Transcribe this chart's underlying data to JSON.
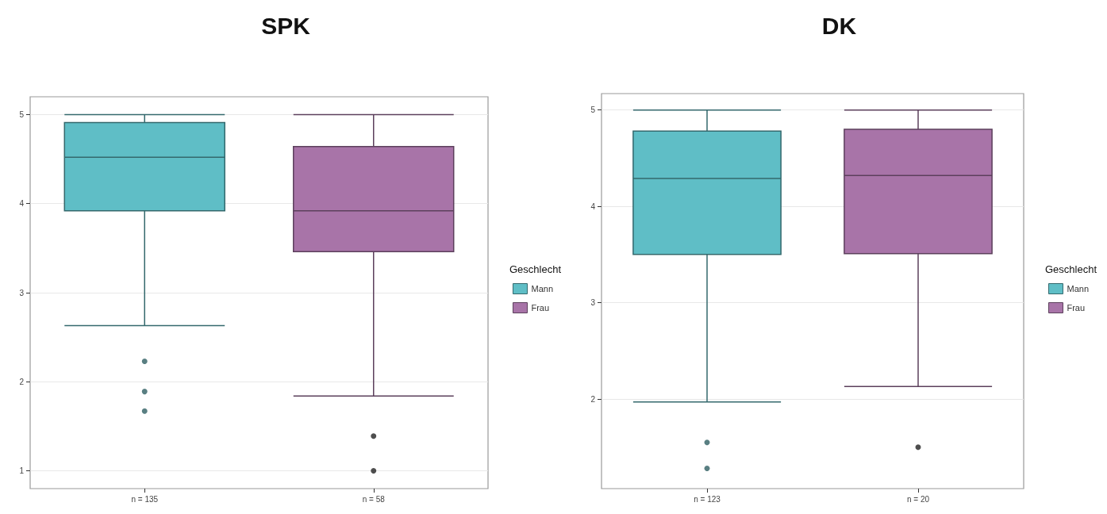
{
  "chart_data": [
    {
      "type": "box",
      "title": "SPK",
      "legend_title": "Geschlecht",
      "legend": "right",
      "grid": "y",
      "categories": [
        "n = 135",
        "n = 58"
      ],
      "ylim": [
        0.8,
        5.2
      ],
      "yticks": [
        1,
        2,
        3,
        4,
        5
      ],
      "series": [
        {
          "name": "Mann",
          "color": "#5fbec6",
          "boxes": [
            {
              "low": 2.63,
              "q1": 3.92,
              "median": 4.52,
              "q3": 4.91,
              "high": 5,
              "outliers": [
                2.23,
                1.89,
                1.67
              ]
            },
            null
          ]
        },
        {
          "name": "Frau",
          "color": "#a874a8",
          "boxes": [
            null,
            {
              "low": 1.84,
              "q1": 3.46,
              "median": 3.92,
              "q3": 4.64,
              "high": 5,
              "outliers": [
                1.39,
                1.0
              ]
            }
          ]
        }
      ]
    },
    {
      "type": "box",
      "title": "DK",
      "legend_title": "Geschlecht",
      "legend": "right",
      "grid": "y",
      "categories": [
        "n = 123",
        "n = 20"
      ],
      "ylim": [
        1.07,
        5.17
      ],
      "yticks": [
        2,
        3,
        4,
        5
      ],
      "series": [
        {
          "name": "Mann",
          "color": "#5fbec6",
          "boxes": [
            {
              "low": 1.97,
              "q1": 3.5,
              "median": 4.29,
              "q3": 4.78,
              "high": 5,
              "outliers": [
                1.55,
                1.28
              ]
            },
            null
          ]
        },
        {
          "name": "Frau",
          "color": "#a874a8",
          "boxes": [
            null,
            {
              "low": 2.13,
              "q1": 3.51,
              "median": 4.32,
              "q3": 4.8,
              "high": 5,
              "outliers": [
                1.5
              ]
            }
          ]
        }
      ]
    }
  ]
}
